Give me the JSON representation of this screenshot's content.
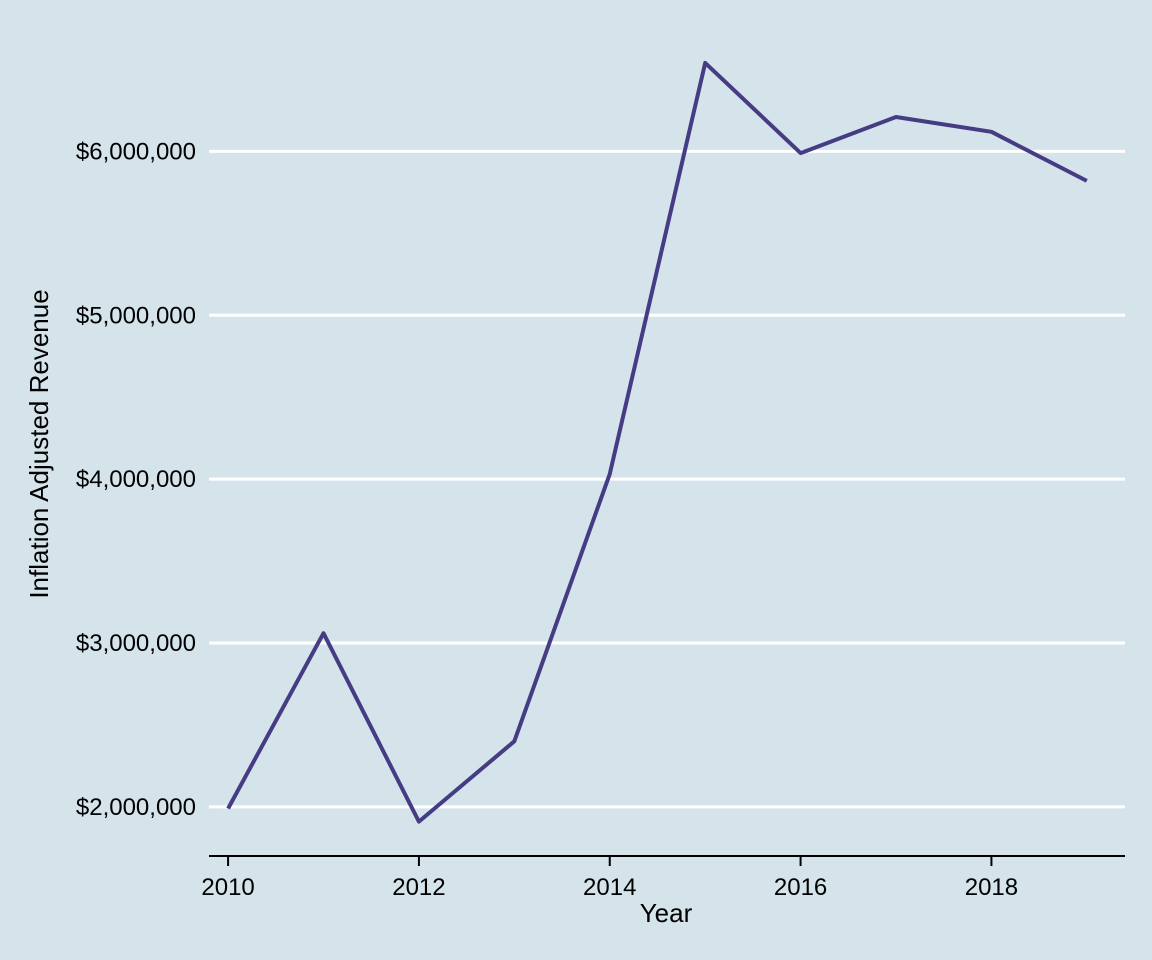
{
  "chart_data": {
    "type": "line",
    "title": "",
    "xlabel": "Year",
    "ylabel": "Inflation Adjusted Revenue",
    "x": [
      2010,
      2011,
      2012,
      2013,
      2014,
      2015,
      2016,
      2017,
      2018,
      2019
    ],
    "series": [
      {
        "values": [
          1990000,
          3060000,
          1910000,
          2400000,
          4030000,
          6540000,
          5990000,
          6210000,
          6120000,
          5820000
        ]
      }
    ],
    "xlim": [
      2009.8,
      2019.4
    ],
    "ylim": [
      1700000,
      6680000
    ],
    "x_ticks": [
      2010,
      2012,
      2014,
      2016,
      2018
    ],
    "x_tick_labels": [
      "2010",
      "2012",
      "2014",
      "2016",
      "2018"
    ],
    "y_ticks": [
      2000000,
      3000000,
      4000000,
      5000000,
      6000000
    ],
    "y_tick_labels": [
      "$2,000,000",
      "$3,000,000",
      "$4,000,000",
      "$5,000,000",
      "$6,000,000"
    ],
    "grid": "horizontal",
    "legend": "none",
    "colors": {
      "background": "#d5e4eb",
      "line": "#463c84",
      "grid": "#ffffff",
      "axis": "#000000"
    }
  }
}
